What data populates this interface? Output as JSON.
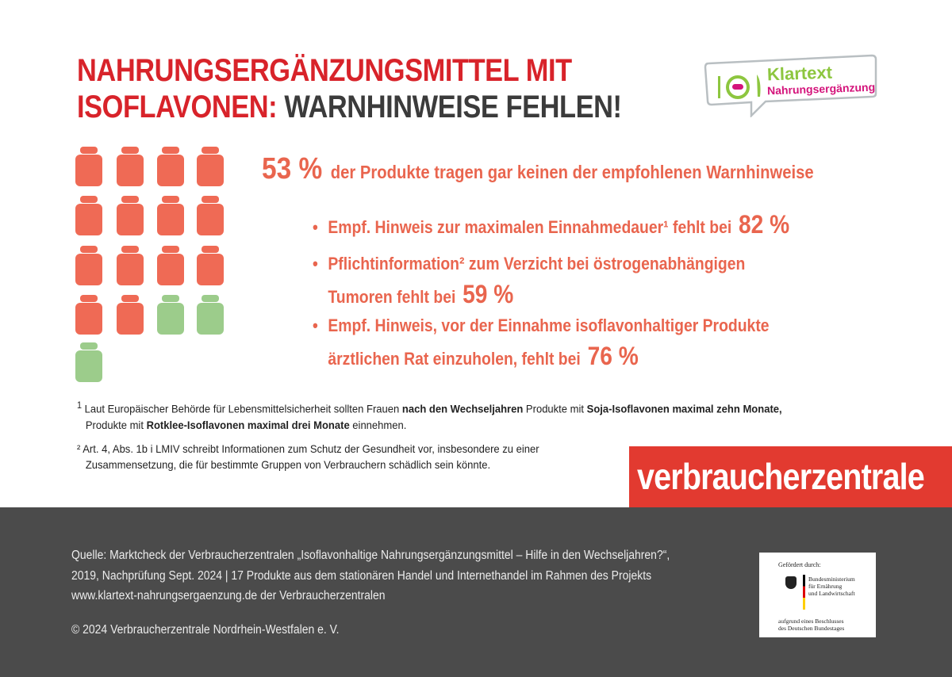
{
  "title": {
    "line1": "NAHRUNGSERGÄNZUNGSMITTEL MIT",
    "line2_red": "ISOFLAVONEN:",
    "line2_dark": "WARNHINWEISE FEHLEN!"
  },
  "logo": {
    "line1": "Klartext",
    "line2": "Nahrungsergänzung",
    "icon": "plate-fork-knife-capsule-icon",
    "green": "#8dc63f",
    "magenta": "#d4147b"
  },
  "pictogram": {
    "total": 17,
    "red_count": 14,
    "green_count": 3,
    "red_color": "#ef6a55",
    "green_color": "#9ccc8b",
    "icon": "supplement-jar-icon"
  },
  "headline": {
    "percent": "53 %",
    "text": "der Produkte tragen gar keinen der empfohlenen Warnhinweise"
  },
  "bullets": [
    {
      "lines": [
        "Empf. Hinweis zur maximalen Einnahmedauer¹ fehlt bei"
      ],
      "percent": "82 %"
    },
    {
      "lines": [
        "Pflichtinformation² zum Verzicht bei östrogenabhängigen",
        "Tumoren fehlt bei"
      ],
      "percent": "59 %"
    },
    {
      "lines": [
        "Empf. Hinweis, vor der Einnahme isoflavonhaltiger Produkte",
        "ärztlichen Rat einzuholen, fehlt bei"
      ],
      "percent": "76 %"
    }
  ],
  "footnotes": {
    "fn1": {
      "marker": "1",
      "a": "Laut Europäischer Behörde für Lebensmittelsicherheit sollten Frauen ",
      "b": "nach den Wechseljahren",
      "c": " Produkte mit ",
      "d": "Soja-Isoflavonen maximal zehn Monate,",
      "e": "Produkte mit ",
      "f": "Rotklee-Isoflavonen maximal drei Monate",
      "g": " einnehmen."
    },
    "fn2": {
      "marker": "²",
      "line1": "Art. 4, Abs. 1b i LMIV schreibt Informationen zum Schutz der Gesundheit vor,  insbesondere zu einer",
      "line2": "Zusammensetzung,  die für bestimmte Gruppen von Verbrauchern schädlich sein könnte."
    }
  },
  "brand": "verbraucherzentrale",
  "footer": {
    "source": [
      "Quelle: Marktcheck der Verbraucherzentralen „Isoflavonhaltige Nahrungsergänzungsmittel – Hilfe in den Wechseljahren?“,",
      "2019, Nachprüfung Sept. 2024 | 17 Produkte aus dem stationären Handel und Internethandel im Rahmen des Projekts",
      "www.klartext-nahrungsergaenzung.de der Verbraucherzentralen"
    ],
    "copyright": "© 2024 Verbraucherzentrale Nordrhein-Westfalen e. V.",
    "funding": {
      "label": "Gefördert durch:",
      "ministry": [
        "Bundesministerium",
        "für Ernährung",
        "und Landwirtschaft"
      ],
      "note": [
        "aufgrund eines Beschlusses",
        "des Deutschen Bundestages"
      ]
    }
  }
}
